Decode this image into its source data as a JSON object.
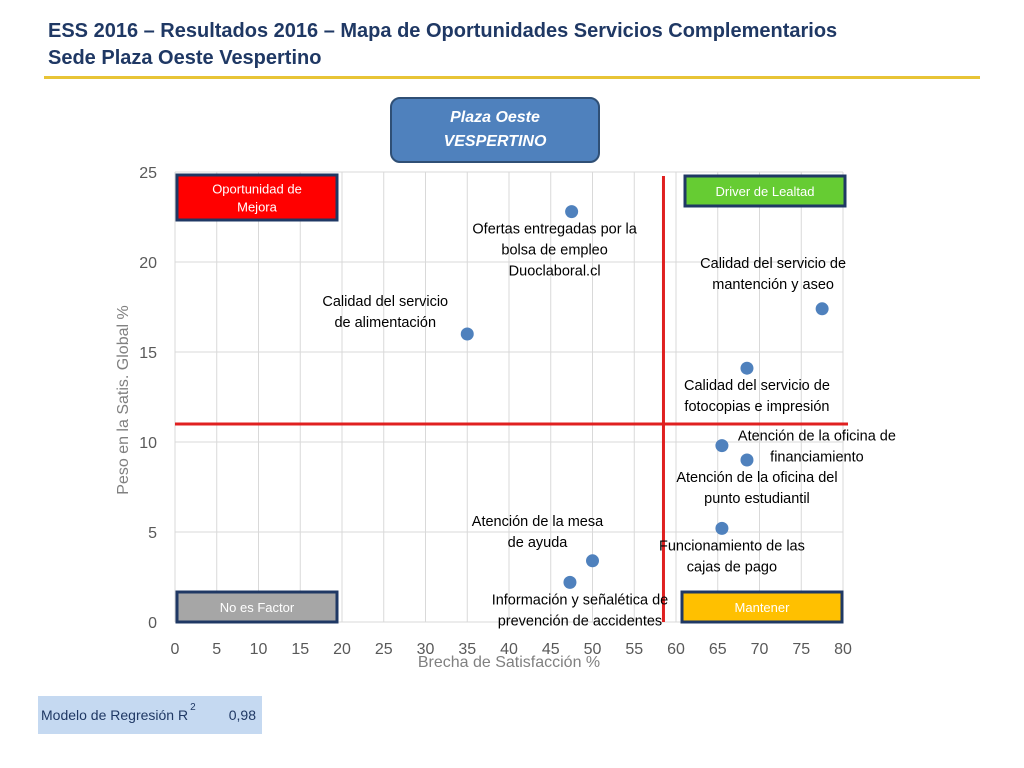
{
  "title": {
    "line1": "ESS 2016 – Resultados 2016 – Mapa de Oportunidades Servicios Complementarios",
    "line2": "Sede Plaza Oeste Vespertino"
  },
  "badge": {
    "line1": "Plaza Oeste",
    "line2": "VESPERTINO"
  },
  "regression": {
    "label": "Modelo de Regresión R",
    "superscript": "2",
    "value": "0,98"
  },
  "colors": {
    "title": "#1f3864",
    "accent_rule": "#e8c436",
    "point": "#4f81bd",
    "threshold_line": "#e02020",
    "grid": "#d9d9d9",
    "axis_text": "#595959"
  },
  "chart_data": {
    "type": "scatter",
    "xlabel": "Brecha de Satisfacción %",
    "ylabel": "Peso en la Satis. Global %",
    "xlim": [
      0,
      80
    ],
    "ylim": [
      0,
      25
    ],
    "xticks": [
      0,
      5,
      10,
      15,
      20,
      25,
      30,
      35,
      40,
      45,
      50,
      55,
      60,
      65,
      70,
      75,
      80
    ],
    "yticks": [
      0,
      5,
      10,
      15,
      20,
      25
    ],
    "grid": true,
    "points": [
      {
        "label": "Ofertas entregadas por la bolsa de empleo Duoclaboral.cl",
        "label_lines": [
          "Ofertas entregadas por la",
          "bolsa de empleo",
          "Duoclaboral.cl"
        ],
        "x": 47.5,
        "y": 22.8,
        "label_pos": "below"
      },
      {
        "label": "Calidad del servicio de alimentación",
        "label_lines": [
          "Calidad del servicio",
          "de alimentación"
        ],
        "x": 35,
        "y": 16,
        "label_pos": "upper-left"
      },
      {
        "label": "Calidad del servicio de mantención y aseo",
        "label_lines": [
          "Calidad del servicio de",
          "mantención y aseo"
        ],
        "x": 77.5,
        "y": 17.4,
        "label_pos": "above"
      },
      {
        "label": "Calidad del servicio de fotocopias e impresión",
        "label_lines": [
          "Calidad del servicio de",
          "fotocopias e impresión"
        ],
        "x": 68.5,
        "y": 14.1,
        "label_pos": "below"
      },
      {
        "label": "Atención de la oficina de financiamiento",
        "label_lines": [
          "Atención de la oficina de",
          "financiamiento"
        ],
        "x": 65.5,
        "y": 9.8,
        "label_pos": "right"
      },
      {
        "label": "Atención de la oficina del punto estudiantil",
        "label_lines": [
          "Atención de la oficina del",
          "punto estudiantil"
        ],
        "x": 68.5,
        "y": 9.0,
        "label_pos": "below"
      },
      {
        "label": "Funcionamiento de las cajas de pago",
        "label_lines": [
          "Funcionamiento de las",
          "cajas de pago"
        ],
        "x": 65.5,
        "y": 5.2,
        "label_pos": "below"
      },
      {
        "label": "Atención de la mesa de ayuda",
        "label_lines": [
          "Atención de la mesa",
          "de ayuda"
        ],
        "x": 50,
        "y": 3.4,
        "label_pos": "above-left"
      },
      {
        "label": "Información y señalética de prevención de accidentes",
        "label_lines": [
          "Información y señalética de",
          "prevención de accidentes"
        ],
        "x": 47.3,
        "y": 2.2,
        "label_pos": "below"
      }
    ],
    "reference_lines": {
      "x": 58.5,
      "y": 11
    },
    "quadrants": [
      {
        "key": "top-left",
        "label_lines": [
          "Oportunidad de",
          "Mejora"
        ],
        "color": "#ff0000",
        "text_color": "#ffffff"
      },
      {
        "key": "top-right",
        "label_lines": [
          "Driver de Lealtad"
        ],
        "color": "#66cc33",
        "text_color": "#ffffff"
      },
      {
        "key": "bottom-left",
        "label_lines": [
          "No es Factor"
        ],
        "color": "#a6a6a6",
        "text_color": "#ffffff"
      },
      {
        "key": "bottom-right",
        "label_lines": [
          "Mantener"
        ],
        "color": "#ffc000",
        "text_color": "#ffffff"
      }
    ]
  }
}
